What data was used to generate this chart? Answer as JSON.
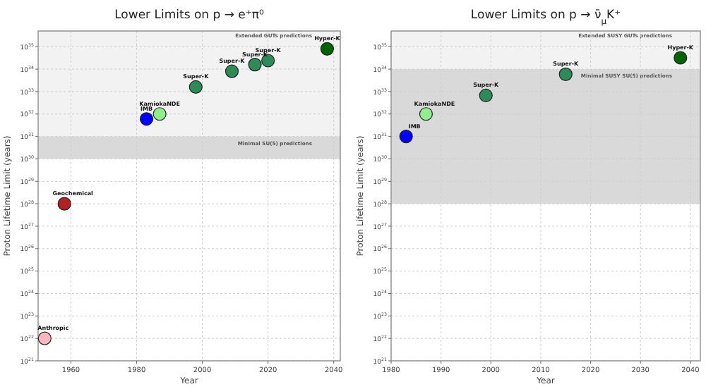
{
  "chart_data": [
    {
      "type": "scatter",
      "title": "Lower Limits on p → e⁺π⁰",
      "xlabel": "Year",
      "ylabel": "Proton Lifetime Limit (years)",
      "log": "y",
      "grid": true,
      "marker": "circle",
      "xlim": [
        1950,
        2042
      ],
      "xticks": [
        1960,
        1980,
        2000,
        2020,
        2040
      ],
      "ylim": [
        1e+21,
        5e+35
      ],
      "yticks": [
        {
          "value": 1e+21,
          "label": "10$^{21}$"
        },
        {
          "value": 1e+22,
          "label": "10$^{22}$"
        },
        {
          "value": 1e+23,
          "label": "10$^{23}$"
        },
        {
          "value": 1e+24,
          "label": "10$^{24}$"
        },
        {
          "value": 1e+25,
          "label": "10$^{25}$"
        },
        {
          "value": 1e+26,
          "label": "10$^{26}$"
        },
        {
          "value": 1e+27,
          "label": "10$^{27}$"
        },
        {
          "value": 1e+28,
          "label": "10$^{28}$"
        },
        {
          "value": 1e+29,
          "label": "10$^{29}$"
        },
        {
          "value": 1e+30,
          "label": "10$^{30}$"
        },
        {
          "value": 1e+31,
          "label": "10$^{31}$"
        },
        {
          "value": 1e+32,
          "label": "10$^{32}$"
        },
        {
          "value": 1e+33,
          "label": "10$^{33}$"
        },
        {
          "value": 1e+34,
          "label": "10$^{34}$"
        },
        {
          "value": 1e+35,
          "label": "10$^{35}$"
        }
      ],
      "bands": [
        {
          "axis": "y",
          "from": 1e+31,
          "to": 5e+35,
          "label": "Extended GUTs predictions",
          "color": "#f2f2f2"
        },
        {
          "axis": "y",
          "from": 1e+30,
          "to": 1e+31,
          "label": "Minimal SU(5) predictions",
          "color": "#d9d9d9"
        }
      ],
      "series": [
        {
          "x": [
            1952,
            1958,
            1983,
            1987,
            1998,
            2009,
            2016,
            2020,
            2038
          ],
          "values": [
            1e+22,
            1e+28,
            6e+31,
            1e+32,
            1.6e+33,
            8e+33,
            1.6e+34,
            2.4e+34,
            8e+34
          ],
          "colors": [
            "#ffb6c1",
            "#b22222",
            "#0000ff",
            "#90ee90",
            "#2e8b57",
            "#2e8b57",
            "#2e8b57",
            "#2e8b57",
            "#006400"
          ]
        }
      ],
      "annotations": [
        {
          "text": "Anthropic",
          "x": 1952,
          "y": 1e+22
        },
        {
          "text": "Geochemical",
          "x": 1958,
          "y": 1e+28
        },
        {
          "text": "IMB",
          "x": 1983,
          "y": 6e+31
        },
        {
          "text": "KamiokaNDE",
          "x": 1987,
          "y": 1e+32
        },
        {
          "text": "Super-K",
          "x": 1998,
          "y": 1.6e+33
        },
        {
          "text": "Super-K",
          "x": 2009,
          "y": 8e+33
        },
        {
          "text": "Super-K",
          "x": 2016,
          "y": 1.6e+34
        },
        {
          "text": "Super-K",
          "x": 2020,
          "y": 2.4e+34
        },
        {
          "text": "Hyper-K",
          "x": 2038,
          "y": 8e+34
        }
      ]
    },
    {
      "type": "scatter",
      "title": "Lower Limits on p → ν̄$_{μ}$K⁺",
      "xlabel": "Year",
      "ylabel": "Proton Lifetime Limit (years)",
      "log": "y",
      "grid": true,
      "marker": "circle",
      "xlim": [
        1980,
        2042
      ],
      "xticks": [
        1980,
        1990,
        2000,
        2010,
        2020,
        2030,
        2040
      ],
      "ylim": [
        1e+21,
        5e+35
      ],
      "yticks": [
        {
          "value": 1e+21,
          "label": "10$^{21}$"
        },
        {
          "value": 1e+22,
          "label": "10$^{22}$"
        },
        {
          "value": 1e+23,
          "label": "10$^{23}$"
        },
        {
          "value": 1e+24,
          "label": "10$^{24}$"
        },
        {
          "value": 1e+25,
          "label": "10$^{25}$"
        },
        {
          "value": 1e+26,
          "label": "10$^{26}$"
        },
        {
          "value": 1e+27,
          "label": "10$^{27}$"
        },
        {
          "value": 1e+28,
          "label": "10$^{28}$"
        },
        {
          "value": 1e+29,
          "label": "10$^{29}$"
        },
        {
          "value": 1e+30,
          "label": "10$^{30}$"
        },
        {
          "value": 1e+31,
          "label": "10$^{31}$"
        },
        {
          "value": 1e+32,
          "label": "10$^{32}$"
        },
        {
          "value": 1e+33,
          "label": "10$^{33}$"
        },
        {
          "value": 1e+34,
          "label": "10$^{34}$"
        },
        {
          "value": 1e+35,
          "label": "10$^{35}$"
        }
      ],
      "bands": [
        {
          "axis": "y",
          "from": 1e+34,
          "to": 5e+35,
          "label": "Extended SUSY GUTs predictions",
          "color": "#f2f2f2"
        },
        {
          "axis": "y",
          "from": 1e+28,
          "to": 1e+34,
          "label": "Minimal SUSY SU(5) predictions",
          "color": "#d9d9d9"
        }
      ],
      "series": [
        {
          "x": [
            1983,
            1987,
            1999,
            2015,
            2038
          ],
          "values": [
            1e+31,
            1e+32,
            6.7e+32,
            5.9e+33,
            3.2e+34
          ],
          "colors": [
            "#0000ff",
            "#90ee90",
            "#2e8b57",
            "#2e8b57",
            "#006400"
          ]
        }
      ],
      "annotations": [
        {
          "text": "IMB",
          "x": 1983,
          "y": 1e+31
        },
        {
          "text": "KamiokaNDE",
          "x": 1987,
          "y": 1e+32
        },
        {
          "text": "Super-K",
          "x": 1999,
          "y": 6.7e+32
        },
        {
          "text": "Super-K",
          "x": 2015,
          "y": 5.9e+33
        },
        {
          "text": "Hyper-K",
          "x": 2038,
          "y": 3.2e+34
        }
      ]
    }
  ]
}
